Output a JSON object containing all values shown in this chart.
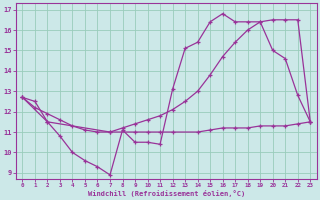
{
  "bg_color": "#cce8e8",
  "grid_color": "#99ccbb",
  "line_color": "#993399",
  "xlim": [
    -0.5,
    23.5
  ],
  "ylim": [
    8.7,
    17.3
  ],
  "xticks": [
    0,
    1,
    2,
    3,
    4,
    5,
    6,
    7,
    8,
    9,
    10,
    11,
    12,
    13,
    14,
    15,
    16,
    17,
    18,
    19,
    20,
    21,
    22,
    23
  ],
  "yticks": [
    9,
    10,
    11,
    12,
    13,
    14,
    15,
    16,
    17
  ],
  "xlabel": "Windchill (Refroidissement éolien,°C)",
  "line1_x": [
    0,
    1,
    2,
    3,
    4,
    5,
    6,
    7,
    8,
    9,
    10,
    11,
    12,
    13,
    14,
    15,
    16,
    17,
    18,
    19,
    20,
    21,
    22,
    23
  ],
  "line1_y": [
    12.7,
    12.5,
    11.5,
    10.8,
    10.0,
    9.6,
    9.3,
    8.9,
    11.1,
    10.5,
    10.5,
    10.4,
    13.1,
    15.1,
    15.4,
    16.4,
    16.8,
    16.4,
    16.4,
    16.4,
    15.0,
    14.6,
    12.8,
    11.5
  ],
  "line2_x": [
    0,
    1,
    2,
    3,
    4,
    5,
    6,
    7,
    8,
    9,
    10,
    11,
    12,
    13,
    14,
    15,
    16,
    17,
    18,
    19,
    20,
    21,
    22,
    23
  ],
  "line2_y": [
    12.7,
    12.2,
    11.9,
    11.6,
    11.3,
    11.1,
    11.0,
    11.0,
    11.2,
    11.4,
    11.6,
    11.8,
    12.1,
    12.5,
    13.0,
    13.8,
    14.7,
    15.4,
    16.0,
    16.4,
    16.5,
    16.5,
    16.5,
    11.5
  ],
  "line3_x": [
    0,
    2,
    7,
    9,
    10,
    11,
    12,
    14,
    15,
    16,
    17,
    18,
    19,
    20,
    21,
    22,
    23
  ],
  "line3_y": [
    12.7,
    11.5,
    11.0,
    11.0,
    11.0,
    11.0,
    11.0,
    11.0,
    11.1,
    11.2,
    11.2,
    11.2,
    11.3,
    11.3,
    11.3,
    11.4,
    11.5
  ]
}
